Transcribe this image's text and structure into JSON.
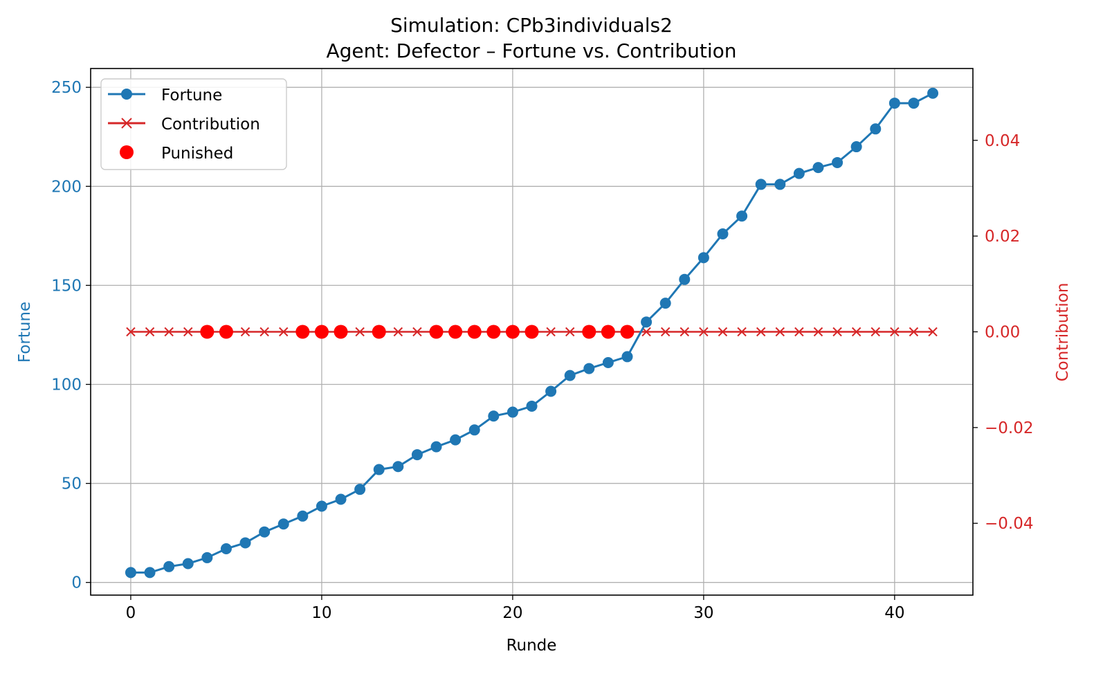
{
  "chart_data": {
    "type": "line",
    "title": "Simulation: CPb3individuals2",
    "subtitle": "Agent: Defector – Fortune vs. Contribution",
    "xlabel": "Runde",
    "ylabel": "Fortune",
    "y2label": "Contribution",
    "xlim": [
      -2.1,
      44.1
    ],
    "ylim": [
      -6.4,
      259.5
    ],
    "y2lim": [
      -0.055,
      0.055
    ],
    "xticks": [
      0,
      10,
      20,
      30,
      40
    ],
    "yticks": [
      0,
      50,
      100,
      150,
      200,
      250
    ],
    "y2ticks": [
      -0.04,
      -0.02,
      0.0,
      0.02,
      0.04
    ],
    "y2ticklabels": [
      "−0.04",
      "−0.02",
      "0.00",
      "0.02",
      "0.04"
    ],
    "grid": true,
    "legend_position": "upper-left",
    "colors": {
      "fortune": "#1f77b4",
      "contribution": "#d62728",
      "punished": "#ff0000",
      "left_axis": "#1f77b4",
      "right_axis": "#d62728"
    },
    "x": [
      0,
      1,
      2,
      3,
      4,
      5,
      6,
      7,
      8,
      9,
      10,
      11,
      12,
      13,
      14,
      15,
      16,
      17,
      18,
      19,
      20,
      21,
      22,
      23,
      24,
      25,
      26,
      27,
      28,
      29,
      30,
      31,
      32,
      33,
      34,
      35,
      36,
      37,
      38,
      39,
      40,
      41,
      42
    ],
    "series": [
      {
        "name": "Fortune",
        "axis": "left",
        "marker": "circle",
        "values": [
          5,
          5,
          8,
          9.5,
          12.5,
          17,
          20,
          25.5,
          29.5,
          33.5,
          38.5,
          42,
          47,
          57,
          58.5,
          64.5,
          68.5,
          72,
          77,
          84,
          86,
          89,
          96.5,
          104.5,
          108,
          111,
          114,
          131.5,
          141,
          153,
          164,
          176,
          185,
          201,
          201,
          206.5,
          209.5,
          212,
          220,
          229,
          242,
          242,
          247
        ]
      },
      {
        "name": "Contribution",
        "axis": "right",
        "marker": "x",
        "values": [
          0,
          0,
          0,
          0,
          0,
          0,
          0,
          0,
          0,
          0,
          0,
          0,
          0,
          0,
          0,
          0,
          0,
          0,
          0,
          0,
          0,
          0,
          0,
          0,
          0,
          0,
          0,
          0,
          0,
          0,
          0,
          0,
          0,
          0,
          0,
          0,
          0,
          0,
          0,
          0,
          0,
          0,
          0
        ]
      },
      {
        "name": "Punished",
        "axis": "right",
        "marker": "dot",
        "x": [
          4,
          5,
          9,
          10,
          11,
          13,
          16,
          17,
          18,
          19,
          20,
          21,
          24,
          25,
          26
        ],
        "values": [
          0,
          0,
          0,
          0,
          0,
          0,
          0,
          0,
          0,
          0,
          0,
          0,
          0,
          0,
          0
        ]
      }
    ]
  }
}
